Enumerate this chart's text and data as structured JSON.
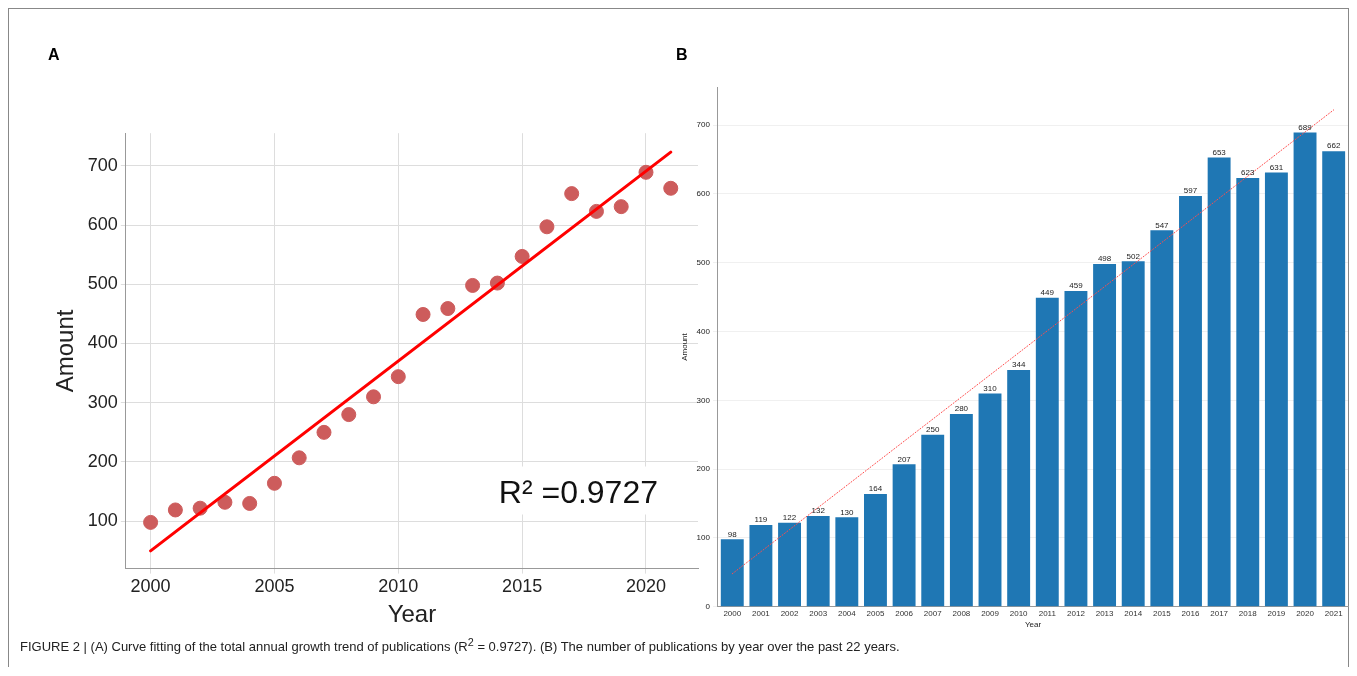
{
  "chart_data": [
    {
      "type": "scatter",
      "title": "A",
      "xlabel": "Year",
      "ylabel": "Amount",
      "xlim": [
        1999,
        2022.1
      ],
      "xticks": [
        2000,
        2005,
        2010,
        2015,
        2020
      ],
      "ylim": [
        20,
        755
      ],
      "yticks": [
        100,
        200,
        300,
        400,
        500,
        600,
        700
      ],
      "grid": true,
      "legend": false,
      "annotations": [
        "R² =0.9727"
      ],
      "series": [
        {
          "color": "#cd5c5c",
          "marker": "circle",
          "x": [
            2000,
            2001,
            2002,
            2003,
            2004,
            2005,
            2006,
            2007,
            2008,
            2009,
            2010,
            2011,
            2012,
            2013,
            2014,
            2015,
            2016,
            2017,
            2018,
            2019,
            2020,
            2021
          ],
          "values": [
            98,
            119,
            122,
            132,
            130,
            164,
            207,
            250,
            280,
            310,
            344,
            449,
            459,
            498,
            502,
            547,
            597,
            653,
            623,
            631,
            689,
            662
          ]
        },
        {
          "type": "line",
          "color": "#ff0000",
          "line_style": "solid",
          "x": [
            2000,
            2021
          ],
          "values": [
            50,
            723
          ]
        }
      ]
    },
    {
      "type": "bar",
      "title": "B",
      "xlabel": "Year",
      "ylabel": "Amount",
      "categories": [
        "2000",
        "2001",
        "2002",
        "2003",
        "2004",
        "2005",
        "2006",
        "2007",
        "2008",
        "2009",
        "2010",
        "2011",
        "2012",
        "2013",
        "2014",
        "2015",
        "2016",
        "2017",
        "2018",
        "2019",
        "2020",
        "2021"
      ],
      "ylim": [
        0,
        755
      ],
      "yticks": [
        0,
        100,
        200,
        300,
        400,
        500,
        600,
        700
      ],
      "grid": "y",
      "legend": false,
      "annotations": [
        "FIGURE 2 | (A) Curve fitting of the total annual growth trend of publications (R$^{2}$ = 0.9727). (B) The number of publications by year over the past 22 years."
      ],
      "series": [
        {
          "color": "#1f77b4",
          "values": [
            98,
            119,
            122,
            132,
            130,
            164,
            207,
            250,
            280,
            310,
            344,
            449,
            459,
            498,
            502,
            547,
            597,
            653,
            623,
            631,
            689,
            662
          ],
          "value_labels": [
            "98",
            "119",
            "122",
            "132",
            "130",
            "164",
            "207",
            "250",
            "280",
            "310",
            "344",
            "449",
            "459",
            "498",
            "502",
            "547",
            "597",
            "653",
            "623",
            "631",
            "689",
            "662"
          ]
        },
        {
          "type": "line",
          "color": "#ff4d4d",
          "line_style": "dotted",
          "values": [
            48,
            null,
            null,
            null,
            null,
            null,
            null,
            null,
            null,
            null,
            null,
            null,
            null,
            null,
            null,
            null,
            null,
            null,
            null,
            null,
            null,
            722
          ]
        }
      ]
    }
  ]
}
